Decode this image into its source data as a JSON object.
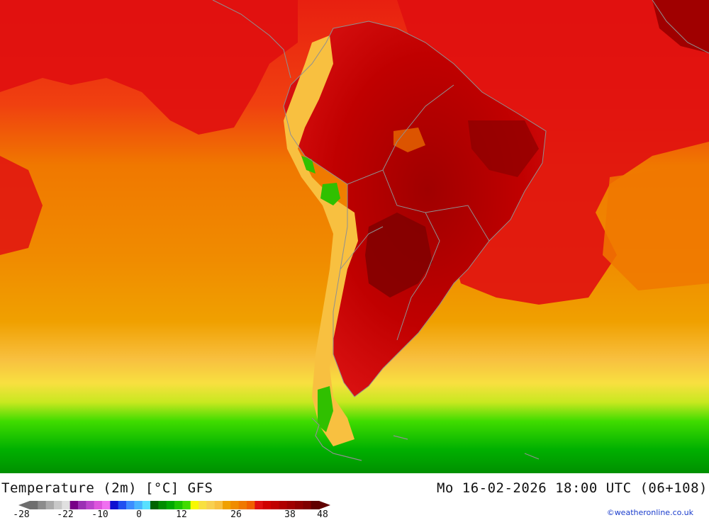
{
  "map": {
    "region": "South America",
    "field": "2 m temperature",
    "colors": {
      "sea_cool": "#f0a000",
      "sea_warm": "#f07800",
      "hot": "#e01010",
      "very_hot": "#c00000",
      "extreme": "#8a0000",
      "mild": "#f8e040",
      "cool_green": "#30c000",
      "cold_green": "#00a000",
      "borders": "#909090"
    }
  },
  "footer": {
    "title": "Temperature (2m) [°C] GFS",
    "datetime": "Mo 16-02-2026 18:00 UTC (06+108)",
    "credit": "©weatheronline.co.uk"
  },
  "legend": {
    "ticks": [
      "-28",
      "-22",
      "-10",
      "0",
      "12",
      "26",
      "38",
      "48"
    ],
    "colors": [
      "#6e6e6e",
      "#8c8c8c",
      "#aaaaaa",
      "#c8c8c8",
      "#e0e0e0",
      "#780088",
      "#9b30b4",
      "#bb44cc",
      "#dd55dd",
      "#f070f0",
      "#1010d0",
      "#2050f0",
      "#3c8cff",
      "#48b4ff",
      "#58e0ff",
      "#006400",
      "#008c00",
      "#00a800",
      "#1cc400",
      "#40dc00",
      "#f8f800",
      "#f8e040",
      "#f8d050",
      "#f8c040",
      "#f0a000",
      "#f08c00",
      "#f07800",
      "#f06000",
      "#e01010",
      "#d00000",
      "#c00000",
      "#b00000",
      "#a00000",
      "#900000",
      "#800000",
      "#600000"
    ]
  }
}
